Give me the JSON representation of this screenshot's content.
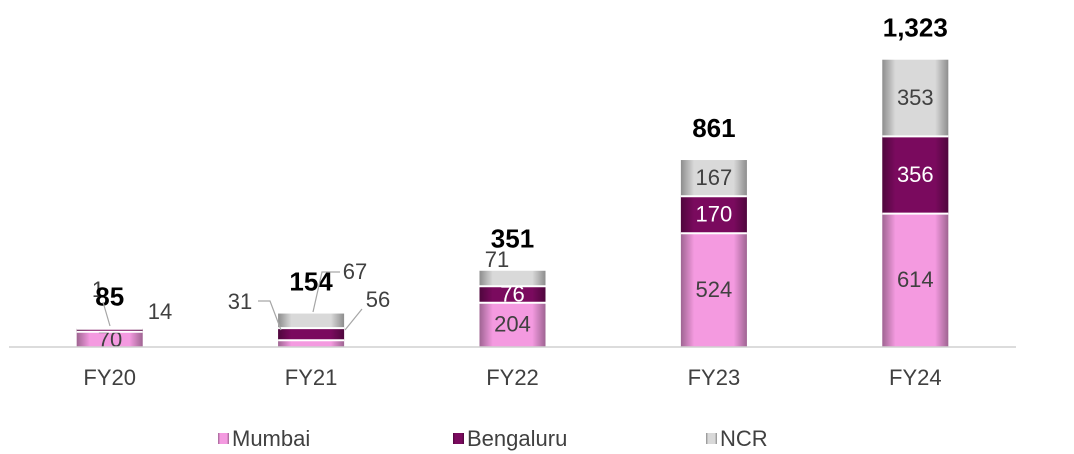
{
  "chart_data": {
    "type": "stacked_bar",
    "categories": [
      "FY20",
      "FY21",
      "FY22",
      "FY23",
      "FY24"
    ],
    "series": [
      {
        "name": "Mumbai",
        "color": "#f49ae0",
        "values": [
          70,
          31,
          204,
          524,
          614
        ]
      },
      {
        "name": "Bengaluru",
        "color": "#7a0a5e",
        "values": [
          14,
          56,
          76,
          170,
          356
        ]
      },
      {
        "name": "NCR",
        "color": "#d9d9d9",
        "values": [
          1,
          67,
          71,
          167,
          353
        ]
      }
    ],
    "totals": [
      85,
      154,
      351,
      861,
      1323
    ],
    "totals_labels": [
      "85",
      "154",
      "351",
      "861",
      "1,323"
    ],
    "ylim": [
      0,
      1400
    ],
    "legend": "bottom"
  }
}
